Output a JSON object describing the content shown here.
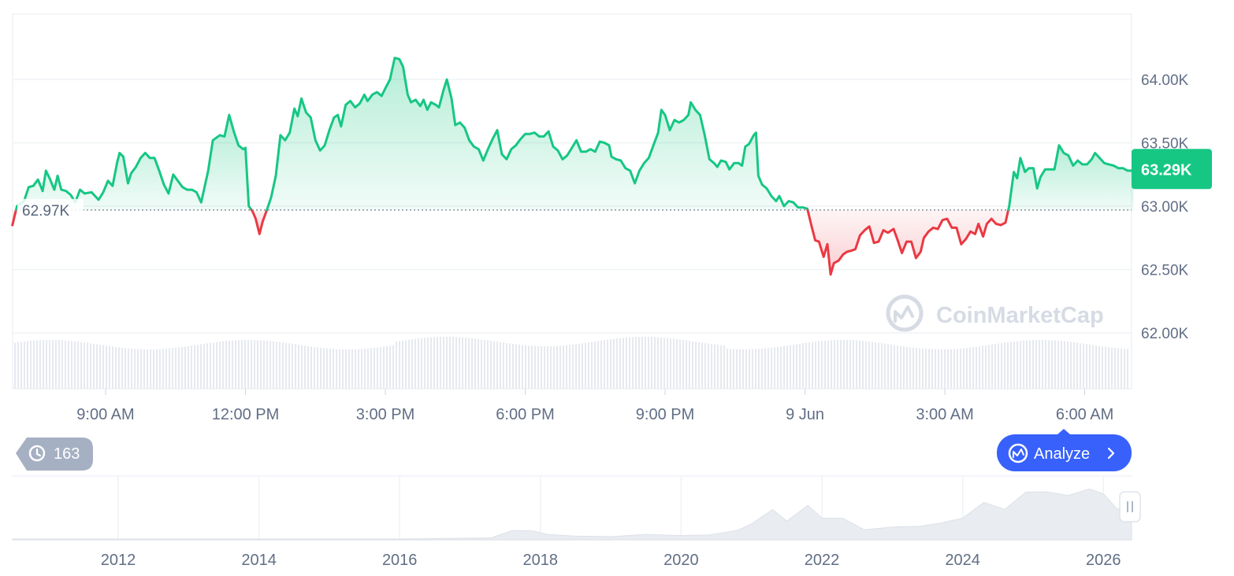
{
  "colors": {
    "up": "#16c784",
    "down": "#ea3943",
    "up_fill": "#d3f5e6",
    "down_fill": "#fbd7d9",
    "grid": "#eff2f5",
    "axis_text": "#616e85",
    "badge_bg": "#16c784",
    "analyze_bg": "#3861fb",
    "history_bg": "#a6b0c3",
    "watermark": "#d6dbe4",
    "volume": "#e6e9ee",
    "nav_fill": "#e9ecf0"
  },
  "watermark": {
    "text": "CoinMarketCap",
    "icon": "coinmarketcap-logo-icon"
  },
  "price_badge": "63.29K",
  "baseline_label": "62.97K",
  "history_badge": {
    "icon": "history-clock-icon",
    "count": "163"
  },
  "analyze_button": {
    "label": "Analyze",
    "icon": "coinmarketcap-analyze-icon",
    "chevron": "chevron-right-icon"
  },
  "navigator": {
    "x_ticks": [
      "2012",
      "2014",
      "2016",
      "2018",
      "2020",
      "2022",
      "2024",
      "2026"
    ],
    "handle_icon": "drag-handle-icon",
    "start_year": 2010.5,
    "end_year": 2026.4,
    "profile": [
      [
        2010.5,
        0
      ],
      [
        2013.0,
        0
      ],
      [
        2016.0,
        0
      ],
      [
        2017.3,
        0.02
      ],
      [
        2017.6,
        0.12
      ],
      [
        2017.9,
        0.18
      ],
      [
        2018.1,
        0.08
      ],
      [
        2018.5,
        0.05
      ],
      [
        2019.0,
        0.04
      ],
      [
        2019.5,
        0.08
      ],
      [
        2020.0,
        0.06
      ],
      [
        2020.4,
        0.07
      ],
      [
        2020.8,
        0.12
      ],
      [
        2021.0,
        0.3
      ],
      [
        2021.3,
        0.48
      ],
      [
        2021.5,
        0.35
      ],
      [
        2021.8,
        0.55
      ],
      [
        2022.0,
        0.4
      ],
      [
        2022.3,
        0.33
      ],
      [
        2022.6,
        0.2
      ],
      [
        2023.0,
        0.18
      ],
      [
        2023.4,
        0.26
      ],
      [
        2023.7,
        0.25
      ],
      [
        2024.0,
        0.4
      ],
      [
        2024.3,
        0.6
      ],
      [
        2024.6,
        0.55
      ],
      [
        2024.9,
        0.78
      ],
      [
        2025.2,
        0.85
      ],
      [
        2025.5,
        0.72
      ],
      [
        2025.8,
        0.9
      ],
      [
        2026.0,
        0.75
      ],
      [
        2026.2,
        0.55
      ],
      [
        2026.4,
        0.6
      ]
    ]
  },
  "chart_data": {
    "type": "area",
    "title": "",
    "xlabel": "",
    "ylabel": "",
    "x_ticks": [
      "9:00 AM",
      "12:00 PM",
      "3:00 PM",
      "6:00 PM",
      "9:00 PM",
      "9 Jun",
      "3:00 AM",
      "6:00 AM"
    ],
    "x_tick_hours": [
      9,
      12,
      15,
      18,
      21,
      24,
      27,
      30
    ],
    "y_ticks": [
      "64.00K",
      "63.50K",
      "63.00K",
      "62.50K",
      "62.00K"
    ],
    "y_tick_values": [
      64000,
      63500,
      63000,
      62500,
      62000
    ],
    "ylim": [
      61990,
      64500
    ],
    "xlim": [
      7.0,
      31.05
    ],
    "baseline": 62970,
    "current_price": 63290,
    "grid": true,
    "series": [
      {
        "points": [
          [
            7.0,
            62850
          ],
          [
            7.1,
            63000
          ],
          [
            7.25,
            63040
          ],
          [
            7.35,
            63150
          ],
          [
            7.45,
            63160
          ],
          [
            7.55,
            63210
          ],
          [
            7.65,
            63120
          ],
          [
            7.72,
            63280
          ],
          [
            7.8,
            63220
          ],
          [
            7.9,
            63130
          ],
          [
            7.97,
            63240
          ],
          [
            8.05,
            63130
          ],
          [
            8.15,
            63120
          ],
          [
            8.25,
            63090
          ],
          [
            8.35,
            63030
          ],
          [
            8.45,
            63130
          ],
          [
            8.55,
            63100
          ],
          [
            8.7,
            63110
          ],
          [
            8.85,
            63050
          ],
          [
            8.95,
            63110
          ],
          [
            9.05,
            63200
          ],
          [
            9.15,
            63160
          ],
          [
            9.25,
            63350
          ],
          [
            9.3,
            63420
          ],
          [
            9.38,
            63390
          ],
          [
            9.48,
            63180
          ],
          [
            9.55,
            63260
          ],
          [
            9.65,
            63310
          ],
          [
            9.75,
            63380
          ],
          [
            9.85,
            63420
          ],
          [
            9.95,
            63380
          ],
          [
            10.05,
            63380
          ],
          [
            10.15,
            63280
          ],
          [
            10.25,
            63170
          ],
          [
            10.35,
            63100
          ],
          [
            10.45,
            63250
          ],
          [
            10.55,
            63200
          ],
          [
            10.65,
            63150
          ],
          [
            10.75,
            63130
          ],
          [
            10.85,
            63130
          ],
          [
            10.95,
            63110
          ],
          [
            11.05,
            63030
          ],
          [
            11.2,
            63280
          ],
          [
            11.3,
            63520
          ],
          [
            11.45,
            63560
          ],
          [
            11.55,
            63550
          ],
          [
            11.65,
            63720
          ],
          [
            11.75,
            63590
          ],
          [
            11.85,
            63480
          ],
          [
            11.95,
            63450
          ],
          [
            12.0,
            63460
          ],
          [
            12.07,
            63000
          ],
          [
            12.15,
            62960
          ],
          [
            12.22,
            62900
          ],
          [
            12.3,
            62780
          ],
          [
            12.37,
            62880
          ],
          [
            12.45,
            62960
          ],
          [
            12.55,
            63070
          ],
          [
            12.65,
            63240
          ],
          [
            12.75,
            63560
          ],
          [
            12.85,
            63520
          ],
          [
            12.95,
            63580
          ],
          [
            13.05,
            63770
          ],
          [
            13.12,
            63710
          ],
          [
            13.2,
            63850
          ],
          [
            13.3,
            63740
          ],
          [
            13.4,
            63700
          ],
          [
            13.5,
            63520
          ],
          [
            13.6,
            63440
          ],
          [
            13.7,
            63480
          ],
          [
            13.8,
            63600
          ],
          [
            13.9,
            63700
          ],
          [
            13.98,
            63720
          ],
          [
            14.05,
            63630
          ],
          [
            14.15,
            63800
          ],
          [
            14.25,
            63830
          ],
          [
            14.35,
            63780
          ],
          [
            14.45,
            63810
          ],
          [
            14.55,
            63880
          ],
          [
            14.62,
            63830
          ],
          [
            14.72,
            63880
          ],
          [
            14.82,
            63900
          ],
          [
            14.92,
            63870
          ],
          [
            15.0,
            63930
          ],
          [
            15.1,
            64000
          ],
          [
            15.2,
            64170
          ],
          [
            15.3,
            64160
          ],
          [
            15.38,
            64100
          ],
          [
            15.48,
            63880
          ],
          [
            15.55,
            63820
          ],
          [
            15.65,
            63840
          ],
          [
            15.75,
            63790
          ],
          [
            15.82,
            63840
          ],
          [
            15.9,
            63760
          ],
          [
            15.98,
            63820
          ],
          [
            16.08,
            63800
          ],
          [
            16.15,
            63780
          ],
          [
            16.25,
            63920
          ],
          [
            16.32,
            64000
          ],
          [
            16.42,
            63850
          ],
          [
            16.5,
            63640
          ],
          [
            16.6,
            63660
          ],
          [
            16.7,
            63620
          ],
          [
            16.8,
            63520
          ],
          [
            16.9,
            63470
          ],
          [
            17.0,
            63450
          ],
          [
            17.1,
            63360
          ],
          [
            17.2,
            63450
          ],
          [
            17.3,
            63530
          ],
          [
            17.4,
            63600
          ],
          [
            17.5,
            63410
          ],
          [
            17.6,
            63370
          ],
          [
            17.7,
            63450
          ],
          [
            17.8,
            63480
          ],
          [
            17.9,
            63530
          ],
          [
            18.0,
            63570
          ],
          [
            18.1,
            63570
          ],
          [
            18.2,
            63580
          ],
          [
            18.3,
            63550
          ],
          [
            18.4,
            63550
          ],
          [
            18.5,
            63590
          ],
          [
            18.6,
            63470
          ],
          [
            18.7,
            63440
          ],
          [
            18.8,
            63370
          ],
          [
            18.9,
            63400
          ],
          [
            19.0,
            63460
          ],
          [
            19.1,
            63520
          ],
          [
            19.2,
            63430
          ],
          [
            19.3,
            63430
          ],
          [
            19.4,
            63450
          ],
          [
            19.5,
            63430
          ],
          [
            19.6,
            63510
          ],
          [
            19.7,
            63500
          ],
          [
            19.8,
            63480
          ],
          [
            19.85,
            63390
          ],
          [
            19.95,
            63370
          ],
          [
            20.05,
            63360
          ],
          [
            20.15,
            63300
          ],
          [
            20.25,
            63280
          ],
          [
            20.35,
            63180
          ],
          [
            20.45,
            63280
          ],
          [
            20.55,
            63340
          ],
          [
            20.65,
            63380
          ],
          [
            20.75,
            63480
          ],
          [
            20.85,
            63580
          ],
          [
            20.92,
            63760
          ],
          [
            21.0,
            63720
          ],
          [
            21.1,
            63600
          ],
          [
            21.2,
            63680
          ],
          [
            21.3,
            63660
          ],
          [
            21.4,
            63680
          ],
          [
            21.5,
            63720
          ],
          [
            21.55,
            63820
          ],
          [
            21.65,
            63760
          ],
          [
            21.75,
            63720
          ],
          [
            21.85,
            63560
          ],
          [
            21.95,
            63370
          ],
          [
            22.05,
            63340
          ],
          [
            22.12,
            63310
          ],
          [
            22.2,
            63360
          ],
          [
            22.3,
            63350
          ],
          [
            22.38,
            63290
          ],
          [
            22.48,
            63340
          ],
          [
            22.58,
            63340
          ],
          [
            22.65,
            63320
          ],
          [
            22.72,
            63470
          ],
          [
            22.8,
            63490
          ],
          [
            22.9,
            63560
          ],
          [
            22.95,
            63580
          ],
          [
            23.0,
            63240
          ],
          [
            23.08,
            63170
          ],
          [
            23.18,
            63140
          ],
          [
            23.28,
            63080
          ],
          [
            23.38,
            63040
          ],
          [
            23.45,
            63080
          ],
          [
            23.55,
            63000
          ],
          [
            23.65,
            63040
          ],
          [
            23.75,
            63030
          ],
          [
            23.85,
            62990
          ],
          [
            23.95,
            62990
          ],
          [
            24.05,
            62980
          ],
          [
            24.15,
            62830
          ],
          [
            24.22,
            62730
          ],
          [
            24.3,
            62720
          ],
          [
            24.4,
            62600
          ],
          [
            24.48,
            62700
          ],
          [
            24.55,
            62460
          ],
          [
            24.62,
            62550
          ],
          [
            24.72,
            62570
          ],
          [
            24.82,
            62620
          ],
          [
            24.9,
            62640
          ],
          [
            25.0,
            62650
          ],
          [
            25.08,
            62660
          ],
          [
            25.18,
            62770
          ],
          [
            25.28,
            62810
          ],
          [
            25.38,
            62840
          ],
          [
            25.48,
            62710
          ],
          [
            25.58,
            62720
          ],
          [
            25.68,
            62810
          ],
          [
            25.78,
            62790
          ],
          [
            25.9,
            62820
          ],
          [
            25.98,
            62740
          ],
          [
            26.08,
            62630
          ],
          [
            26.18,
            62720
          ],
          [
            26.28,
            62720
          ],
          [
            26.38,
            62590
          ],
          [
            26.48,
            62640
          ],
          [
            26.55,
            62750
          ],
          [
            26.65,
            62800
          ],
          [
            26.75,
            62830
          ],
          [
            26.85,
            62820
          ],
          [
            26.95,
            62890
          ],
          [
            27.05,
            62900
          ],
          [
            27.15,
            62830
          ],
          [
            27.25,
            62830
          ],
          [
            27.35,
            62700
          ],
          [
            27.45,
            62740
          ],
          [
            27.55,
            62800
          ],
          [
            27.65,
            62780
          ],
          [
            27.72,
            62860
          ],
          [
            27.82,
            62760
          ],
          [
            27.9,
            62860
          ],
          [
            28.0,
            62900
          ],
          [
            28.1,
            62860
          ],
          [
            28.2,
            62850
          ],
          [
            28.3,
            62870
          ],
          [
            28.38,
            63000
          ],
          [
            28.48,
            63270
          ],
          [
            28.55,
            63220
          ],
          [
            28.62,
            63380
          ],
          [
            28.72,
            63270
          ],
          [
            28.8,
            63300
          ],
          [
            28.9,
            63300
          ],
          [
            28.98,
            63140
          ],
          [
            29.05,
            63230
          ],
          [
            29.15,
            63290
          ],
          [
            29.25,
            63290
          ],
          [
            29.35,
            63290
          ],
          [
            29.45,
            63480
          ],
          [
            29.55,
            63420
          ],
          [
            29.65,
            63400
          ],
          [
            29.75,
            63320
          ],
          [
            29.85,
            63360
          ],
          [
            29.95,
            63330
          ],
          [
            30.05,
            63330
          ],
          [
            30.15,
            63370
          ],
          [
            30.22,
            63420
          ],
          [
            30.32,
            63380
          ],
          [
            30.42,
            63340
          ],
          [
            30.52,
            63330
          ],
          [
            30.62,
            63320
          ],
          [
            30.72,
            63300
          ],
          [
            30.82,
            63300
          ],
          [
            30.92,
            63280
          ],
          [
            31.0,
            63280
          ],
          [
            31.05,
            63290
          ]
        ]
      }
    ]
  }
}
